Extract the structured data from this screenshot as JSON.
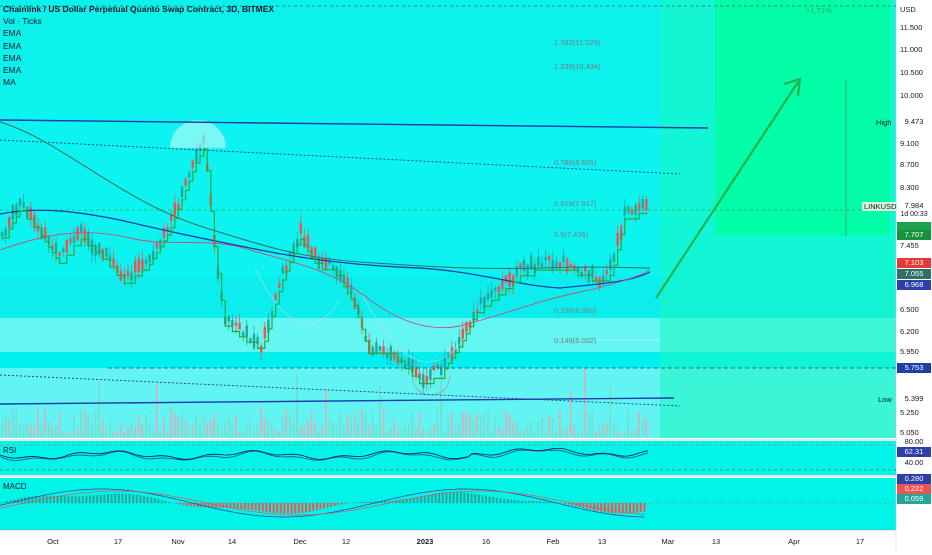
{
  "header": {
    "title": "Chainlink / US Dollar Perpetual Quanto Swap Contract, 3D, BITMEX",
    "indicators": [
      "Vol · Ticks",
      "EMA",
      "EMA",
      "EMA",
      "EMA",
      "MA"
    ]
  },
  "price_axis": {
    "unit": "USD",
    "labels": [
      "11.500",
      "11.000",
      "10.500",
      "10.000",
      "9.100",
      "8.700",
      "8.300",
      "7.455",
      "6.500",
      "6.200",
      "5.950",
      "5.250",
      "5.050"
    ]
  },
  "tags": {
    "high_label": "High",
    "high_value": "9.473",
    "symbol_label": "LINKUSD",
    "symbol_price": "7.984",
    "symbol_countdown": "1d 00:33",
    "ema_a": "7.707",
    "ema_b": "7.103",
    "ema_c": "7.055",
    "ema_d": "6.968",
    "line_level": "5.753",
    "low_label": "Low",
    "low_value": "5.399"
  },
  "fib_levels": [
    {
      "label": "1.382(11.029)"
    },
    {
      "label": "1.236(10.434)"
    },
    {
      "label": "0.786(8.601)"
    },
    {
      "label": "0.618(7.917)"
    },
    {
      "label": "0.5(7.436)"
    },
    {
      "label": "0.236(6.360)"
    },
    {
      "label": "0.148(6.002)"
    }
  ],
  "target_label": "+1.71%",
  "rsi": {
    "label": "RSI",
    "value": "62.31",
    "upper": "80.00",
    "lower": "40.00"
  },
  "macd": {
    "label": "MACD",
    "v1": "0.280",
    "v2": "0.222",
    "v3": "0.059"
  },
  "time_axis": [
    "Oct",
    "17",
    "Nov",
    "14",
    "Dec",
    "12",
    "2023",
    "16",
    "Feb",
    "13",
    "Mar",
    "13",
    "Apr",
    "17"
  ],
  "colors": {
    "background_cyan": "#00f0f0",
    "forecast_green": "#00ff9c",
    "up_candle": "#26a69a",
    "down_candle": "#ef5350",
    "arrow": "#22b14c",
    "trendline": "#1e3ea8",
    "ema_blue": "#2d3fa8",
    "ema_teal": "#2f6f6a",
    "ma_red": "#c2527a",
    "step_green": "#2fa83a"
  }
}
